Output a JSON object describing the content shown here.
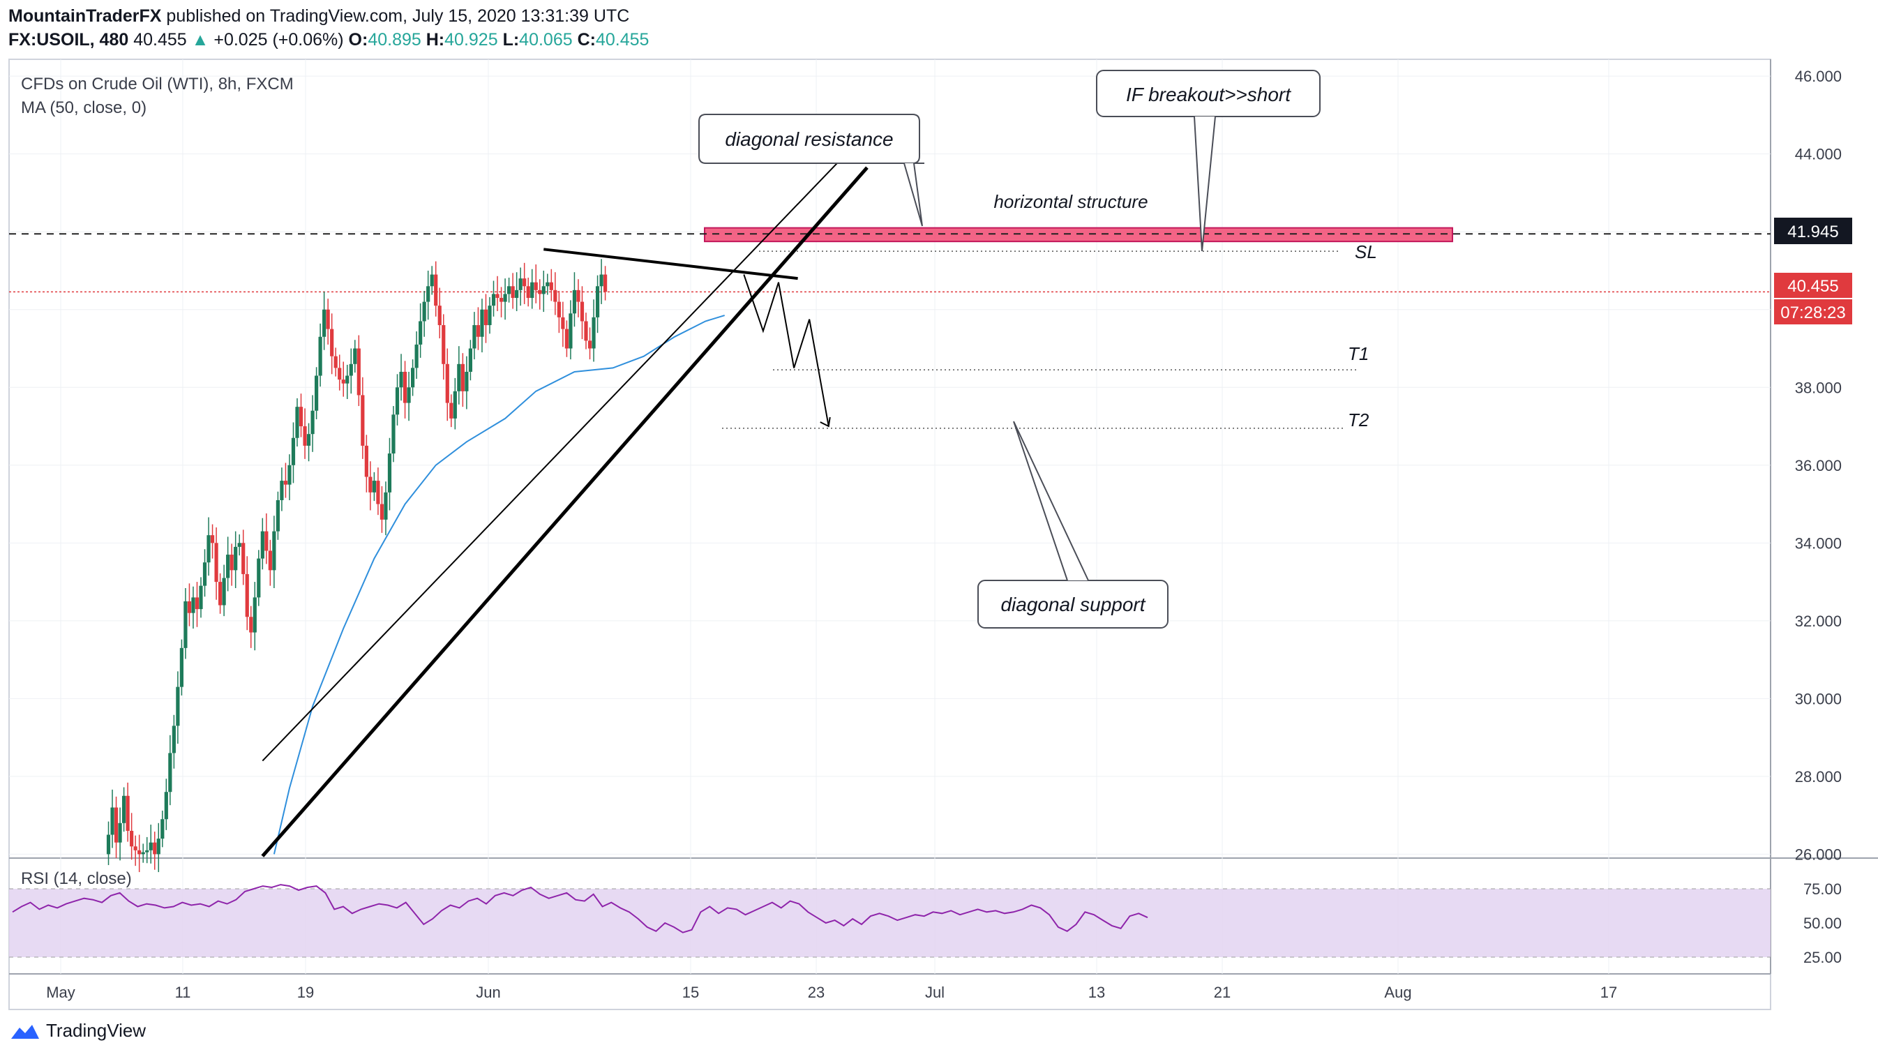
{
  "header": {
    "author": "MountainTraderFX",
    "published": "published on TradingView.com, July 15, 2020 13:31:39 UTC",
    "symbol": "FX:USOIL, 480",
    "last": "40.455",
    "change_arrow": "▲",
    "change": "+0.025 (+0.06%)",
    "o_label": "O:",
    "o": "40.895",
    "h_label": "H:",
    "h": "40.925",
    "l_label": "L:",
    "l": "40.065",
    "c_label": "C:",
    "c": "40.455"
  },
  "legend": {
    "instrument": "CFDs on Crude Oil (WTI), 8h, FXCM",
    "ma": "MA (50, close, 0)",
    "rsi": "RSI (14, close)"
  },
  "annotations": {
    "diag_resistance": "diagonal resistance",
    "breakout": "IF breakout>>short",
    "horizontal": "horizontal structure",
    "sl": "SL",
    "t1": "T1",
    "t2": "T2",
    "diag_support": "diagonal support"
  },
  "badges": {
    "level": "41.945",
    "price": "40.455",
    "countdown": "07:28:23"
  },
  "footer": {
    "brand": "TradingView"
  },
  "colors": {
    "up": "#1e7b5a",
    "down": "#e03a3e",
    "ma": "#2f8fdc",
    "rsi": "#8e24aa",
    "zone": "#f0426b",
    "rsi_band": "#e3d4f1"
  },
  "chart_data": {
    "type": "candlestick",
    "title": "CFDs on Crude Oil (WTI), 8h, FXCM",
    "x_ticks": [
      "May",
      "11",
      "19",
      "Jun",
      "15",
      "23",
      "Jul",
      "13",
      "21",
      "Aug",
      "17"
    ],
    "y_ticks": [
      "46.000",
      "44.000",
      "42.000",
      "40.000",
      "38.000",
      "36.000",
      "34.000",
      "32.000",
      "30.000",
      "28.000",
      "26.000"
    ],
    "ylim": [
      25.9,
      46.2
    ],
    "rsi_ticks": [
      "75.00",
      "50.00",
      "25.00"
    ],
    "rsi_range": [
      25,
      75
    ],
    "levels": {
      "horizontal_zone": [
        41.75,
        42.1
      ],
      "sl": 41.5,
      "t1": 38.45,
      "t2": 36.95,
      "last": 40.455,
      "dashed": 41.945
    },
    "price_path": [
      26.0,
      26.5,
      27.2,
      26.3,
      26.8,
      27.5,
      26.6,
      26.2,
      26.1,
      26.0,
      26.05,
      26.1,
      26.3,
      26.0,
      26.4,
      26.9,
      27.6,
      28.6,
      29.3,
      30.3,
      31.3,
      32.5,
      32.2,
      32.6,
      32.3,
      32.9,
      33.5,
      34.2,
      34.0,
      33.0,
      32.4,
      33.1,
      33.7,
      33.3,
      33.9,
      34.0,
      33.2,
      32.1,
      31.7,
      32.6,
      33.6,
      34.3,
      33.8,
      33.3,
      34.3,
      35.1,
      35.6,
      35.5,
      36.0,
      36.7,
      37.5,
      37.0,
      36.5,
      36.8,
      37.4,
      38.3,
      39.3,
      40.0,
      39.5,
      38.8,
      38.5,
      38.2,
      38.1,
      38.3,
      38.6,
      39.0,
      37.8,
      36.5,
      35.7,
      35.3,
      35.6,
      35.0,
      34.6,
      35.3,
      36.3,
      37.3,
      38.0,
      38.4,
      37.6,
      38.0,
      38.5,
      39.1,
      39.7,
      40.2,
      40.6,
      40.9,
      40.1,
      39.6,
      38.6,
      37.6,
      37.2,
      37.9,
      38.6,
      37.9,
      38.4,
      39.0,
      39.6,
      39.3,
      40.0,
      39.6,
      40.1,
      40.4,
      40.3,
      40.2,
      40.4,
      40.6,
      40.3,
      40.5,
      40.8,
      40.6,
      40.3,
      40.7,
      40.5,
      40.4,
      40.6,
      40.7,
      40.5,
      40.2,
      39.8,
      39.5,
      39.0,
      39.9,
      40.5,
      40.2,
      39.7,
      39.2,
      39.0,
      39.8,
      40.6,
      40.9,
      40.455
    ],
    "ma_path": [
      {
        "i": 44,
        "v": 26.0
      },
      {
        "i": 48,
        "v": 27.7
      },
      {
        "i": 54,
        "v": 29.8
      },
      {
        "i": 62,
        "v": 31.8
      },
      {
        "i": 70,
        "v": 33.6
      },
      {
        "i": 78,
        "v": 35.0
      },
      {
        "i": 86,
        "v": 36.0
      },
      {
        "i": 94,
        "v": 36.6
      },
      {
        "i": 104,
        "v": 37.2
      },
      {
        "i": 112,
        "v": 37.9
      },
      {
        "i": 122,
        "v": 38.4
      },
      {
        "i": 132,
        "v": 38.5
      },
      {
        "i": 140,
        "v": 38.8
      },
      {
        "i": 148,
        "v": 39.3
      },
      {
        "i": 156,
        "v": 39.7
      },
      {
        "i": 161,
        "v": 39.85
      }
    ],
    "rsi_path": [
      58,
      62,
      65,
      60,
      63,
      61,
      64,
      66,
      68,
      67,
      65,
      70,
      72,
      66,
      62,
      64,
      63,
      61,
      62,
      65,
      63,
      64,
      62,
      66,
      64,
      67,
      73,
      75,
      77,
      76,
      78,
      77,
      74,
      76,
      77,
      72,
      60,
      62,
      57,
      60,
      62,
      64,
      63,
      61,
      65,
      57,
      49,
      53,
      59,
      63,
      61,
      66,
      68,
      64,
      70,
      72,
      70,
      74,
      76,
      71,
      68,
      70,
      72,
      67,
      66,
      71,
      62,
      65,
      61,
      58,
      53,
      47,
      44,
      50,
      47,
      43,
      45,
      58,
      62,
      57,
      61,
      60,
      56,
      59,
      62,
      65,
      61,
      66,
      64,
      58,
      54,
      50,
      52,
      48,
      53,
      49,
      55,
      57,
      55,
      52,
      54,
      56,
      55,
      58,
      57,
      59,
      56,
      58,
      60,
      58,
      59,
      57,
      58,
      60,
      63,
      61,
      56,
      47,
      44,
      49,
      58,
      56,
      52,
      48,
      46,
      55,
      57,
      54
    ],
    "trendlines": [
      {
        "name": "diagonal support",
        "from": {
          "i": 41,
          "v": 25.95
        },
        "to": {
          "i": 198,
          "v": 43.65
        }
      },
      {
        "name": "upper channel",
        "from": {
          "i": 41,
          "v": 28.4
        },
        "to": {
          "i": 193,
          "v": 44.05
        }
      },
      {
        "name": "diagonal resistance",
        "from": {
          "i": 114,
          "v": 41.55
        },
        "to": {
          "i": 180,
          "v": 40.8
        }
      }
    ],
    "projection": [
      {
        "i": 166,
        "v": 40.9
      },
      {
        "i": 171,
        "v": 39.45
      },
      {
        "i": 175,
        "v": 40.7
      },
      {
        "i": 179,
        "v": 38.5
      },
      {
        "i": 183,
        "v": 39.75
      },
      {
        "i": 188,
        "v": 37.0
      }
    ]
  }
}
